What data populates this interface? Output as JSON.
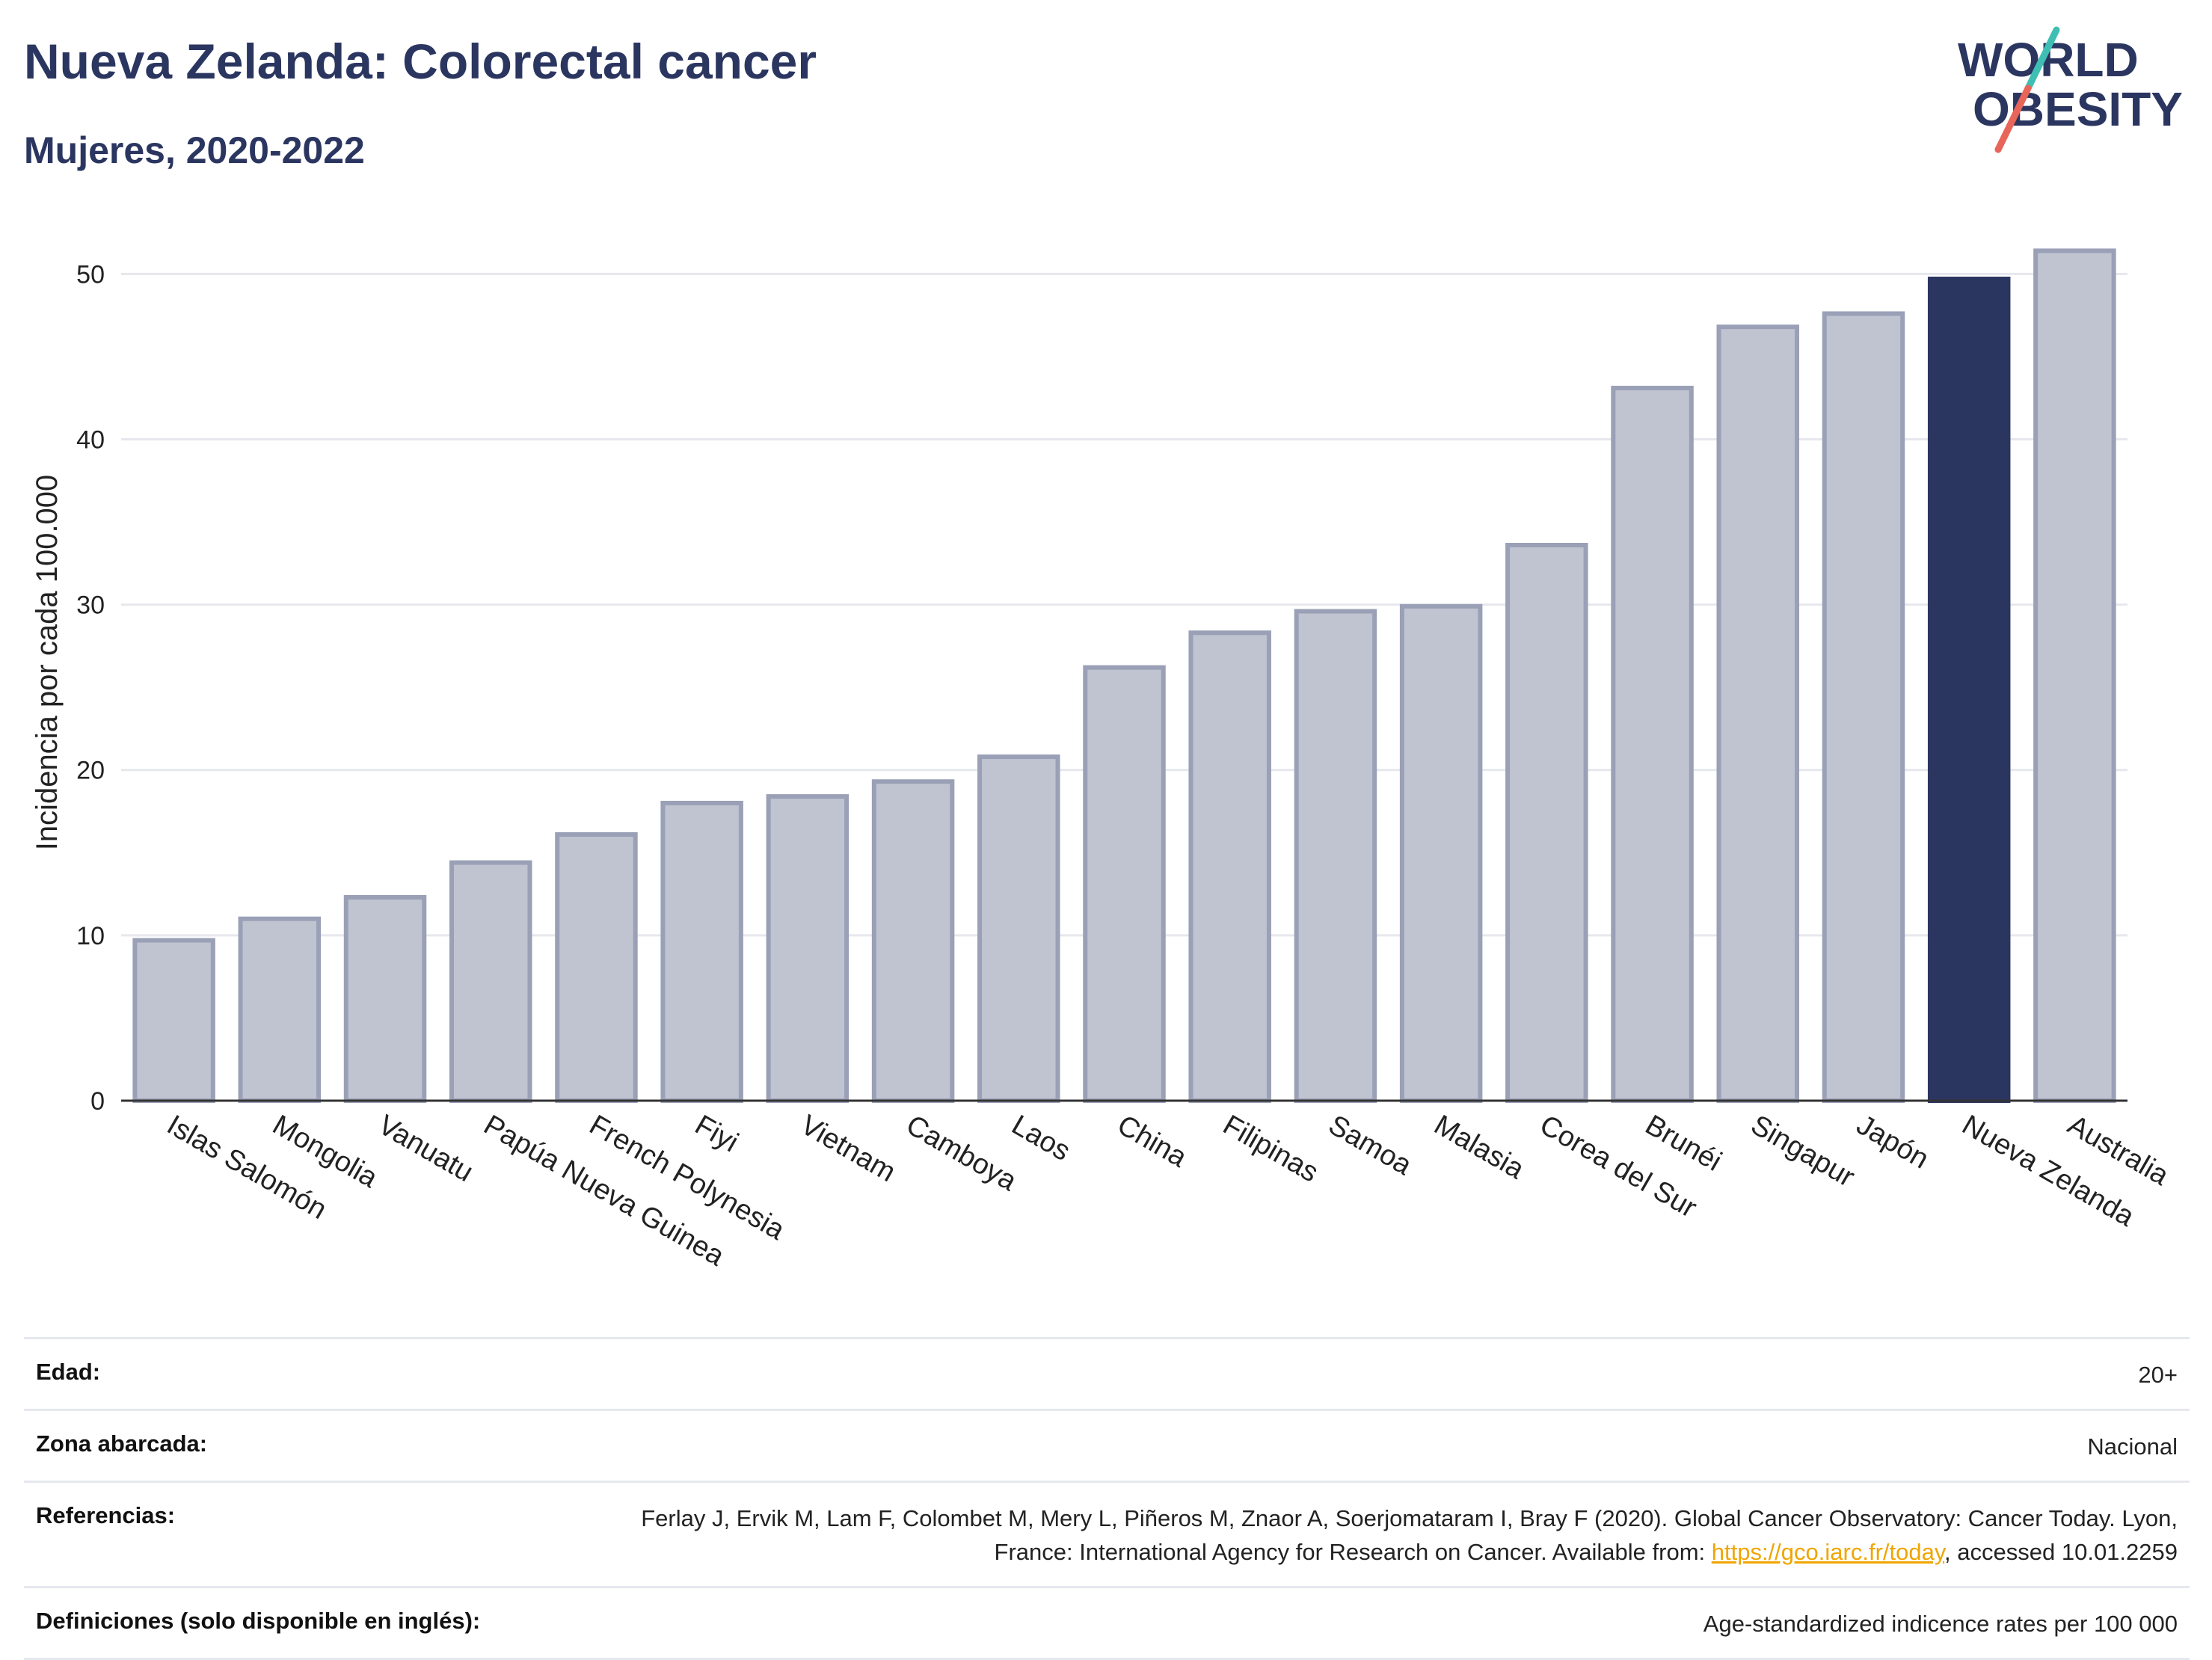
{
  "header": {
    "title": "Nueva Zelanda: Colorectal cancer",
    "subtitle": "Mujeres, 2020-2022"
  },
  "logo": {
    "line1": "WORLD",
    "line2": "OBESITY",
    "accent_teal": "#3fbfb4",
    "accent_red": "#e8655a",
    "text_color": "#2b3660"
  },
  "chart_data": {
    "type": "bar",
    "title": "",
    "xlabel": "",
    "ylabel": "Incidencia por cada 100.000",
    "ylim": [
      0,
      53
    ],
    "yticks": [
      0,
      10,
      20,
      30,
      40,
      50
    ],
    "grid": true,
    "categories": [
      "Islas Salomón",
      "Mongolia",
      "Vanuatu",
      "Papúa Nueva Guinea",
      "French Polynesia",
      "Fiyi",
      "Vietnam",
      "Camboya",
      "Laos",
      "China",
      "Filipinas",
      "Samoa",
      "Malasia",
      "Corea del Sur",
      "Brunéi",
      "Singapur",
      "Japón",
      "Nueva Zelanda",
      "Australia"
    ],
    "values": [
      9.7,
      11.0,
      12.3,
      14.4,
      16.1,
      18.0,
      18.4,
      19.3,
      20.8,
      26.2,
      28.3,
      29.6,
      29.9,
      33.6,
      43.1,
      46.8,
      47.6,
      49.7,
      51.4
    ],
    "highlight": "Nueva Zelanda",
    "colors": {
      "bar": "#c0c3d0",
      "bar_edge": "#9aa0b6",
      "highlight": "#2b3660",
      "grid": "#e7e8ee",
      "axis": "#333333"
    }
  },
  "meta": {
    "rows": [
      {
        "label": "Edad:",
        "value": "20+"
      },
      {
        "label": "Zona abarcada:",
        "value": "Nacional"
      },
      {
        "label": "Referencias:",
        "value_pre": "Ferlay J, Ervik M, Lam F, Colombet M, Mery L, Piñeros M, Znaor A, Soerjomataram I, Bray F (2020). Global Cancer Observatory: Cancer Today. Lyon, France: International Agency for Research on Cancer. Available from: ",
        "link": "https://gco.iarc.fr/today",
        "value_post": ", accessed 10.01.2259"
      },
      {
        "label": "Definiciones (solo disponible en inglés):",
        "value": "Age-standardized indicence rates per 100 000"
      }
    ]
  }
}
